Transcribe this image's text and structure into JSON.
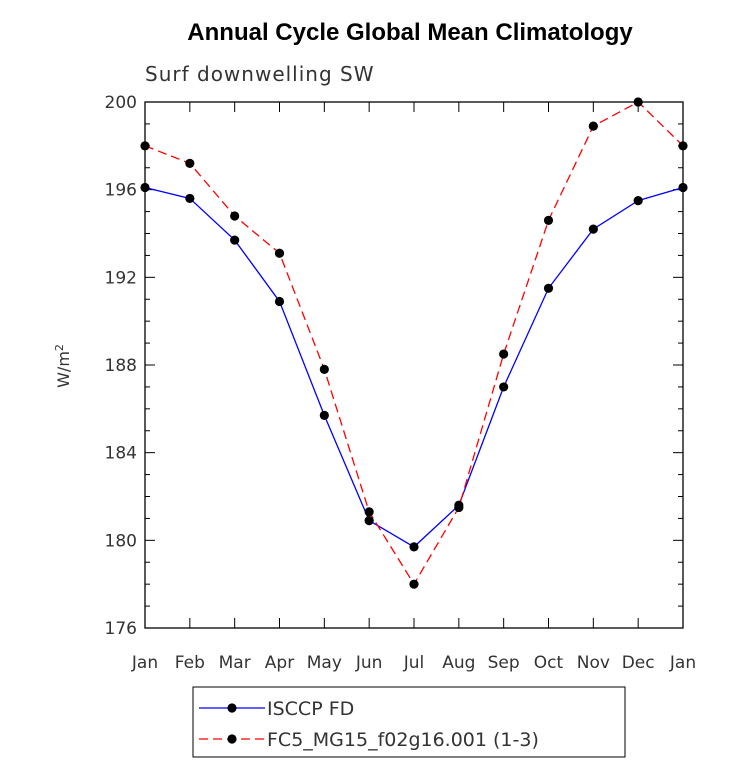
{
  "chart_data": {
    "type": "line",
    "title": "Annual Cycle Global Mean Climatology",
    "subtitle": "Surf downwelling SW",
    "ylabel": "W/m",
    "ylabel_superscript": "2",
    "xlabel": "",
    "categories": [
      "Jan",
      "Feb",
      "Mar",
      "Apr",
      "May",
      "Jun",
      "Jul",
      "Aug",
      "Sep",
      "Oct",
      "Nov",
      "Dec",
      "Jan"
    ],
    "ylim": [
      176,
      200
    ],
    "yticks": [
      176,
      180,
      184,
      188,
      192,
      196,
      200
    ],
    "grid": false,
    "legend_position": "bottom",
    "series": [
      {
        "name": "ISCCP FD",
        "color": "#0000ff",
        "line_style": "solid",
        "marker": "circle",
        "values": [
          196.1,
          195.6,
          193.7,
          190.9,
          185.7,
          180.9,
          179.7,
          181.6,
          187.0,
          191.5,
          194.2,
          195.5,
          196.1
        ]
      },
      {
        "name": "FC5_MG15_f02g16.001 (1-3)",
        "color": "#ff0000",
        "line_style": "dashed",
        "marker": "circle",
        "values": [
          198.0,
          197.2,
          194.8,
          193.1,
          187.8,
          181.3,
          178.0,
          181.5,
          188.5,
          194.6,
          198.9,
          200.0,
          198.0
        ]
      }
    ]
  }
}
